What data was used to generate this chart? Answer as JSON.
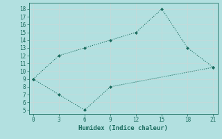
{
  "xlabel": "Humidex (Indice chaleur)",
  "line1_x": [
    0,
    3,
    6,
    9,
    12,
    15,
    18,
    21
  ],
  "line1_y": [
    9,
    12,
    13,
    14,
    15,
    18,
    13,
    10.5
  ],
  "line2_x": [
    0,
    3,
    6,
    9,
    21
  ],
  "line2_y": [
    9,
    7,
    5,
    8,
    10.5
  ],
  "line_color": "#1a6b5e",
  "bg_color": "#b2e0e0",
  "grid_color": "#d0e8e8",
  "ylim": [
    4.5,
    18.8
  ],
  "xlim": [
    -0.5,
    21.5
  ],
  "yticks": [
    5,
    6,
    7,
    8,
    9,
    10,
    11,
    12,
    13,
    14,
    15,
    16,
    17,
    18
  ],
  "xticks": [
    0,
    3,
    6,
    9,
    12,
    15,
    18,
    21
  ]
}
